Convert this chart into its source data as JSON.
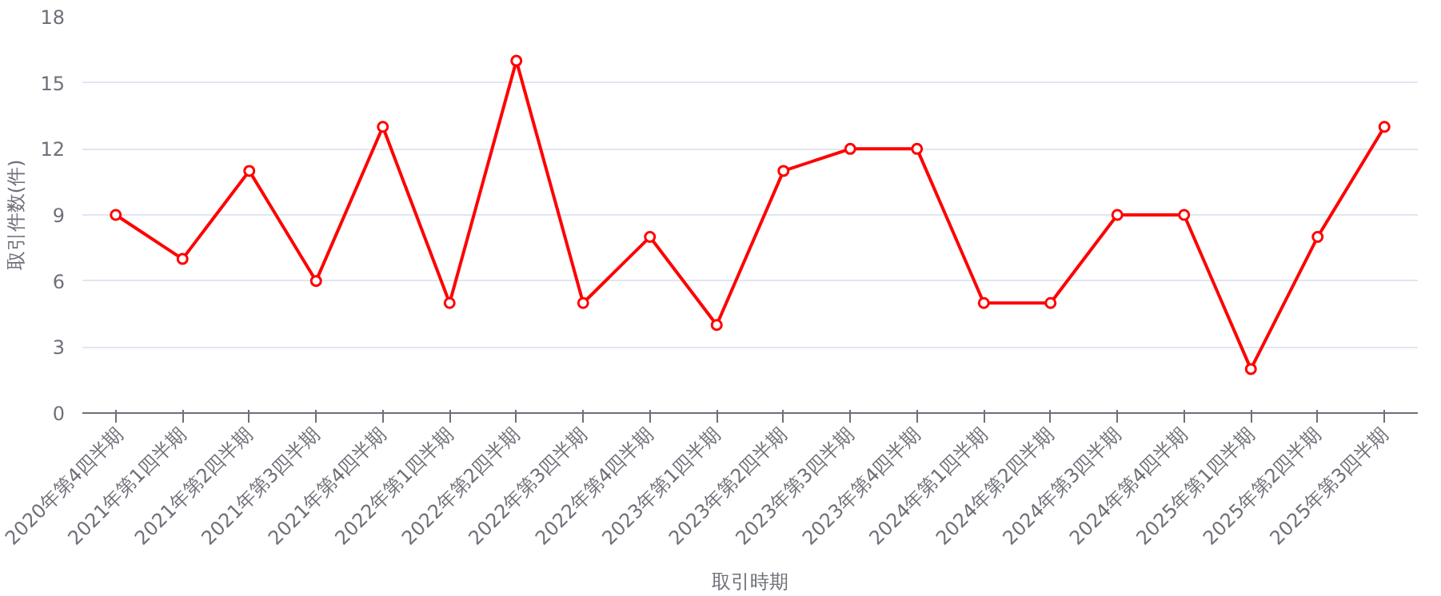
{
  "chart_data": {
    "type": "line",
    "xlabel": "取引時期",
    "ylabel": "取引件数(件)",
    "categories": [
      "2020年第4四半期",
      "2021年第1四半期",
      "2021年第2四半期",
      "2021年第3四半期",
      "2021年第4四半期",
      "2022年第1四半期",
      "2022年第2四半期",
      "2022年第3四半期",
      "2022年第4四半期",
      "2023年第1四半期",
      "2023年第2四半期",
      "2023年第3四半期",
      "2023年第4四半期",
      "2024年第1四半期",
      "2024年第2四半期",
      "2024年第3四半期",
      "2024年第4四半期",
      "2025年第1四半期",
      "2025年第2四半期",
      "2025年第3四半期"
    ],
    "series": [
      {
        "color": "#ff0000",
        "values": [
          9,
          7,
          11,
          6,
          13,
          5,
          16,
          5,
          8,
          4,
          11,
          12,
          12,
          5,
          5,
          9,
          9,
          2,
          8,
          13
        ]
      }
    ],
    "ylim": [
      0,
      18
    ],
    "yticks": [
      0,
      3,
      6,
      9,
      12,
      15,
      18
    ],
    "grid": "y",
    "marker": "circle",
    "line_style": "solid"
  }
}
